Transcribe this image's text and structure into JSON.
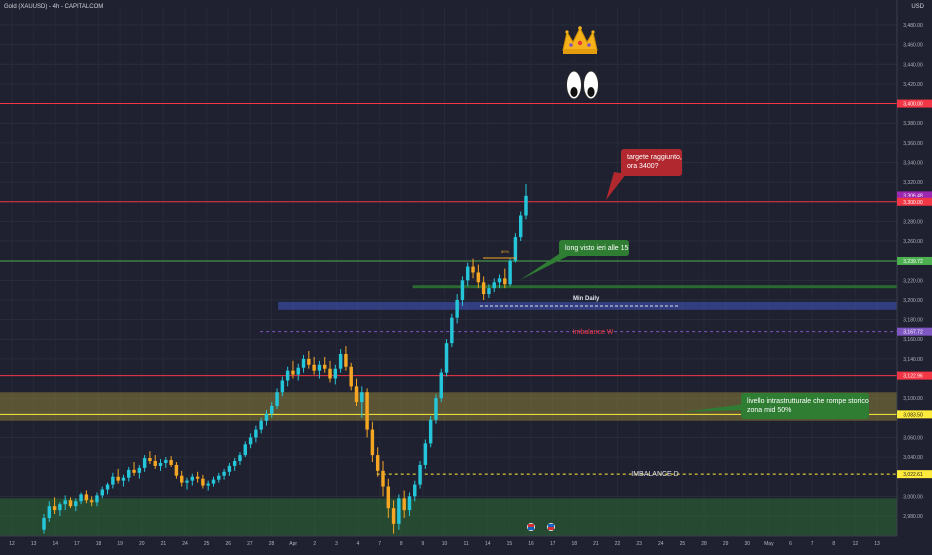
{
  "header": {
    "title": "Gold (XAUUSD) - 4h - CAPITALCOM",
    "currency": "USD"
  },
  "chart_data": {
    "type": "candlestick",
    "title": "Gold (XAUUSD) - 4h - CAPITALCOM",
    "ylim": [
      2960,
      3500
    ],
    "grid": true,
    "y_ticks": [
      {
        "value": 3480,
        "label": "3,480.00"
      },
      {
        "value": 3460,
        "label": "3,460.00"
      },
      {
        "value": 3440,
        "label": "3,440.00"
      },
      {
        "value": 3420,
        "label": "3,420.00"
      },
      {
        "value": 3380,
        "label": "3,380.00"
      },
      {
        "value": 3360,
        "label": "3,360.00"
      },
      {
        "value": 3340,
        "label": "3,340.00"
      },
      {
        "value": 3320,
        "label": "3,320.00"
      },
      {
        "value": 3280,
        "label": "3,280.00"
      },
      {
        "value": 3260,
        "label": "3,260.00"
      },
      {
        "value": 3220,
        "label": "3,220.00"
      },
      {
        "value": 3200,
        "label": "3,200.00"
      },
      {
        "value": 3180,
        "label": "3,180.00"
      },
      {
        "value": 3160,
        "label": "3,160.00"
      },
      {
        "value": 3140,
        "label": "3,140.00"
      },
      {
        "value": 3100,
        "label": "3,100.00"
      },
      {
        "value": 3060,
        "label": "3,060.00"
      },
      {
        "value": 3040,
        "label": "3,040.00"
      },
      {
        "value": 3000,
        "label": "3,000.00"
      },
      {
        "value": 2980,
        "label": "2,980.00"
      }
    ],
    "price_tags": [
      {
        "value": 3400,
        "label": "3,400.00",
        "color": "#f23645"
      },
      {
        "value": 3306.48,
        "label": "3,306.48",
        "color": "#9c27b0"
      },
      {
        "value": 3301,
        "label": "55:03",
        "color": "#9c27b0"
      },
      {
        "value": 3300,
        "label": "3,300.00",
        "color": "#f23645"
      },
      {
        "value": 3239.72,
        "label": "3,239.72",
        "color": "#4caf50"
      },
      {
        "value": 3167.72,
        "label": "3,167.72",
        "color": "#7e57c2"
      },
      {
        "value": 3122.96,
        "label": "3,122.96",
        "color": "#f23645"
      },
      {
        "value": 3083.5,
        "label": "3,083.50",
        "color": "#ffeb3b"
      },
      {
        "value": 3022.61,
        "label": "3,022.61",
        "color": "#ffeb3b"
      }
    ],
    "x_ticks": [
      "12",
      "13",
      "14",
      "17",
      "18",
      "19",
      "20",
      "21",
      "24",
      "25",
      "26",
      "27",
      "28",
      "Apr",
      "2",
      "3",
      "4",
      "7",
      "8",
      "9",
      "10",
      "11",
      "14",
      "15",
      "16",
      "17",
      "18",
      "21",
      "22",
      "23",
      "24",
      "25",
      "28",
      "29",
      "30",
      "May",
      "6",
      "7",
      "8",
      "12",
      "13"
    ],
    "levels": [
      {
        "value": 3400,
        "color": "#f23645"
      },
      {
        "value": 3300,
        "color": "#f23645"
      },
      {
        "value": 3239.72,
        "color": "#4caf50"
      },
      {
        "value": 3122.96,
        "color": "#f23645"
      },
      {
        "value": 3083.5,
        "color": "#ffeb3b"
      }
    ],
    "zones": [
      {
        "from": 3077,
        "to": 3106,
        "color": "#c9b440",
        "opacity": 0.35,
        "x_from": 0
      },
      {
        "from": 2960,
        "to": 2998,
        "color": "#2e7d32",
        "opacity": 0.45,
        "x_from": 0
      },
      {
        "from": 3190,
        "to": 3198,
        "color": "#3f51b5",
        "opacity": 0.6,
        "x_from": 0.31
      },
      {
        "from": 3212,
        "to": 3215,
        "color": "#2e7d32",
        "opacity": 0.8,
        "x_from": 0.46
      }
    ],
    "dashed_levels": [
      {
        "value": 3167.72,
        "color": "#7e57c2",
        "x_from": 0.29
      },
      {
        "value": 3022.61,
        "color": "#ffeb3b",
        "x_from": 0.42
      }
    ],
    "candles": [
      [
        2966,
        2982,
        2962,
        2978
      ],
      [
        2978,
        2995,
        2974,
        2990
      ],
      [
        2990,
        2999,
        2982,
        2986
      ],
      [
        2986,
        2994,
        2980,
        2992
      ],
      [
        2992,
        3001,
        2986,
        2996
      ],
      [
        2996,
        2999,
        2988,
        2990
      ],
      [
        2990,
        2998,
        2985,
        2995
      ],
      [
        2995,
        3004,
        2992,
        3002
      ],
      [
        3002,
        3006,
        2993,
        2996
      ],
      [
        2996,
        3000,
        2990,
        2994
      ],
      [
        2994,
        3004,
        2990,
        3001
      ],
      [
        3001,
        3010,
        2998,
        3007
      ],
      [
        3007,
        3014,
        3002,
        3012
      ],
      [
        3012,
        3024,
        3008,
        3020
      ],
      [
        3020,
        3028,
        3013,
        3016
      ],
      [
        3016,
        3022,
        3010,
        3019
      ],
      [
        3019,
        3030,
        3015,
        3027
      ],
      [
        3027,
        3035,
        3021,
        3024
      ],
      [
        3024,
        3032,
        3018,
        3029
      ],
      [
        3029,
        3042,
        3025,
        3039
      ],
      [
        3039,
        3046,
        3033,
        3036
      ],
      [
        3036,
        3042,
        3028,
        3031
      ],
      [
        3031,
        3038,
        3026,
        3034
      ],
      [
        3034,
        3040,
        3029,
        3037
      ],
      [
        3037,
        3041,
        3030,
        3032
      ],
      [
        3032,
        3035,
        3018,
        3021
      ],
      [
        3021,
        3026,
        3010,
        3014
      ],
      [
        3014,
        3019,
        3007,
        3016
      ],
      [
        3016,
        3023,
        3011,
        3020
      ],
      [
        3020,
        3025,
        3014,
        3018
      ],
      [
        3018,
        3022,
        3008,
        3011
      ],
      [
        3011,
        3016,
        3006,
        3013
      ],
      [
        3013,
        3020,
        3010,
        3017
      ],
      [
        3017,
        3024,
        3014,
        3021
      ],
      [
        3021,
        3028,
        3017,
        3025
      ],
      [
        3025,
        3034,
        3021,
        3031
      ],
      [
        3031,
        3039,
        3026,
        3036
      ],
      [
        3036,
        3045,
        3032,
        3042
      ],
      [
        3042,
        3056,
        3040,
        3053
      ],
      [
        3053,
        3064,
        3049,
        3060
      ],
      [
        3060,
        3072,
        3055,
        3068
      ],
      [
        3068,
        3080,
        3064,
        3077
      ],
      [
        3077,
        3088,
        3072,
        3084
      ],
      [
        3084,
        3096,
        3080,
        3092
      ],
      [
        3092,
        3110,
        3089,
        3106
      ],
      [
        3106,
        3122,
        3102,
        3118
      ],
      [
        3118,
        3132,
        3112,
        3128
      ],
      [
        3128,
        3138,
        3120,
        3124
      ],
      [
        3124,
        3135,
        3118,
        3131
      ],
      [
        3131,
        3144,
        3126,
        3140
      ],
      [
        3140,
        3148,
        3130,
        3134
      ],
      [
        3134,
        3142,
        3124,
        3128
      ],
      [
        3128,
        3138,
        3120,
        3134
      ],
      [
        3134,
        3142,
        3126,
        3130
      ],
      [
        3130,
        3138,
        3116,
        3120
      ],
      [
        3120,
        3134,
        3114,
        3130
      ],
      [
        3130,
        3150,
        3126,
        3145
      ],
      [
        3145,
        3153,
        3128,
        3132
      ],
      [
        3132,
        3136,
        3108,
        3112
      ],
      [
        3112,
        3120,
        3092,
        3096
      ],
      [
        3096,
        3112,
        3080,
        3106
      ],
      [
        3106,
        3110,
        3060,
        3068
      ],
      [
        3068,
        3076,
        3035,
        3042
      ],
      [
        3042,
        3050,
        3020,
        3026
      ],
      [
        3026,
        3036,
        3000,
        3010
      ],
      [
        3010,
        3018,
        2978,
        2988
      ],
      [
        2988,
        2996,
        2962,
        2972
      ],
      [
        2972,
        3002,
        2966,
        2998
      ],
      [
        2998,
        3006,
        2978,
        2986
      ],
      [
        2986,
        3004,
        2980,
        3000
      ],
      [
        3000,
        3016,
        2995,
        3012
      ],
      [
        3012,
        3036,
        3008,
        3032
      ],
      [
        3032,
        3058,
        3028,
        3054
      ],
      [
        3054,
        3082,
        3050,
        3078
      ],
      [
        3078,
        3104,
        3074,
        3100
      ],
      [
        3100,
        3130,
        3096,
        3126
      ],
      [
        3126,
        3160,
        3122,
        3156
      ],
      [
        3156,
        3186,
        3152,
        3182
      ],
      [
        3182,
        3206,
        3176,
        3200
      ],
      [
        3200,
        3224,
        3194,
        3220
      ],
      [
        3220,
        3238,
        3214,
        3234
      ],
      [
        3234,
        3242,
        3222,
        3228
      ],
      [
        3228,
        3236,
        3212,
        3218
      ],
      [
        3218,
        3224,
        3200,
        3206
      ],
      [
        3206,
        3216,
        3202,
        3212
      ],
      [
        3212,
        3222,
        3208,
        3218
      ],
      [
        3218,
        3226,
        3212,
        3222
      ],
      [
        3222,
        3232,
        3212,
        3216
      ],
      [
        3216,
        3242,
        3214,
        3240
      ],
      [
        3240,
        3268,
        3238,
        3264
      ],
      [
        3264,
        3290,
        3260,
        3286
      ],
      [
        3286,
        3318,
        3282,
        3306
      ]
    ],
    "annotations": [
      {
        "text": [
          "targete raggiunto,",
          "ora 3400?"
        ],
        "bg": "#b2282f",
        "fg": "#ffffff"
      },
      {
        "text": [
          "long visto ieri alle 15"
        ],
        "bg": "#2e7d32",
        "fg": "#ffffff"
      },
      {
        "text": [
          "livello intrastrutturale che rompe storico",
          "zona mid 50%"
        ],
        "bg": "#2e7d32",
        "fg": "#ffffff"
      }
    ],
    "labels": {
      "min_daily": "Min Daily",
      "imbalance_w": "Imbalance W",
      "imbalance_d": "IMBALANCE D",
      "fib": "80%"
    }
  }
}
